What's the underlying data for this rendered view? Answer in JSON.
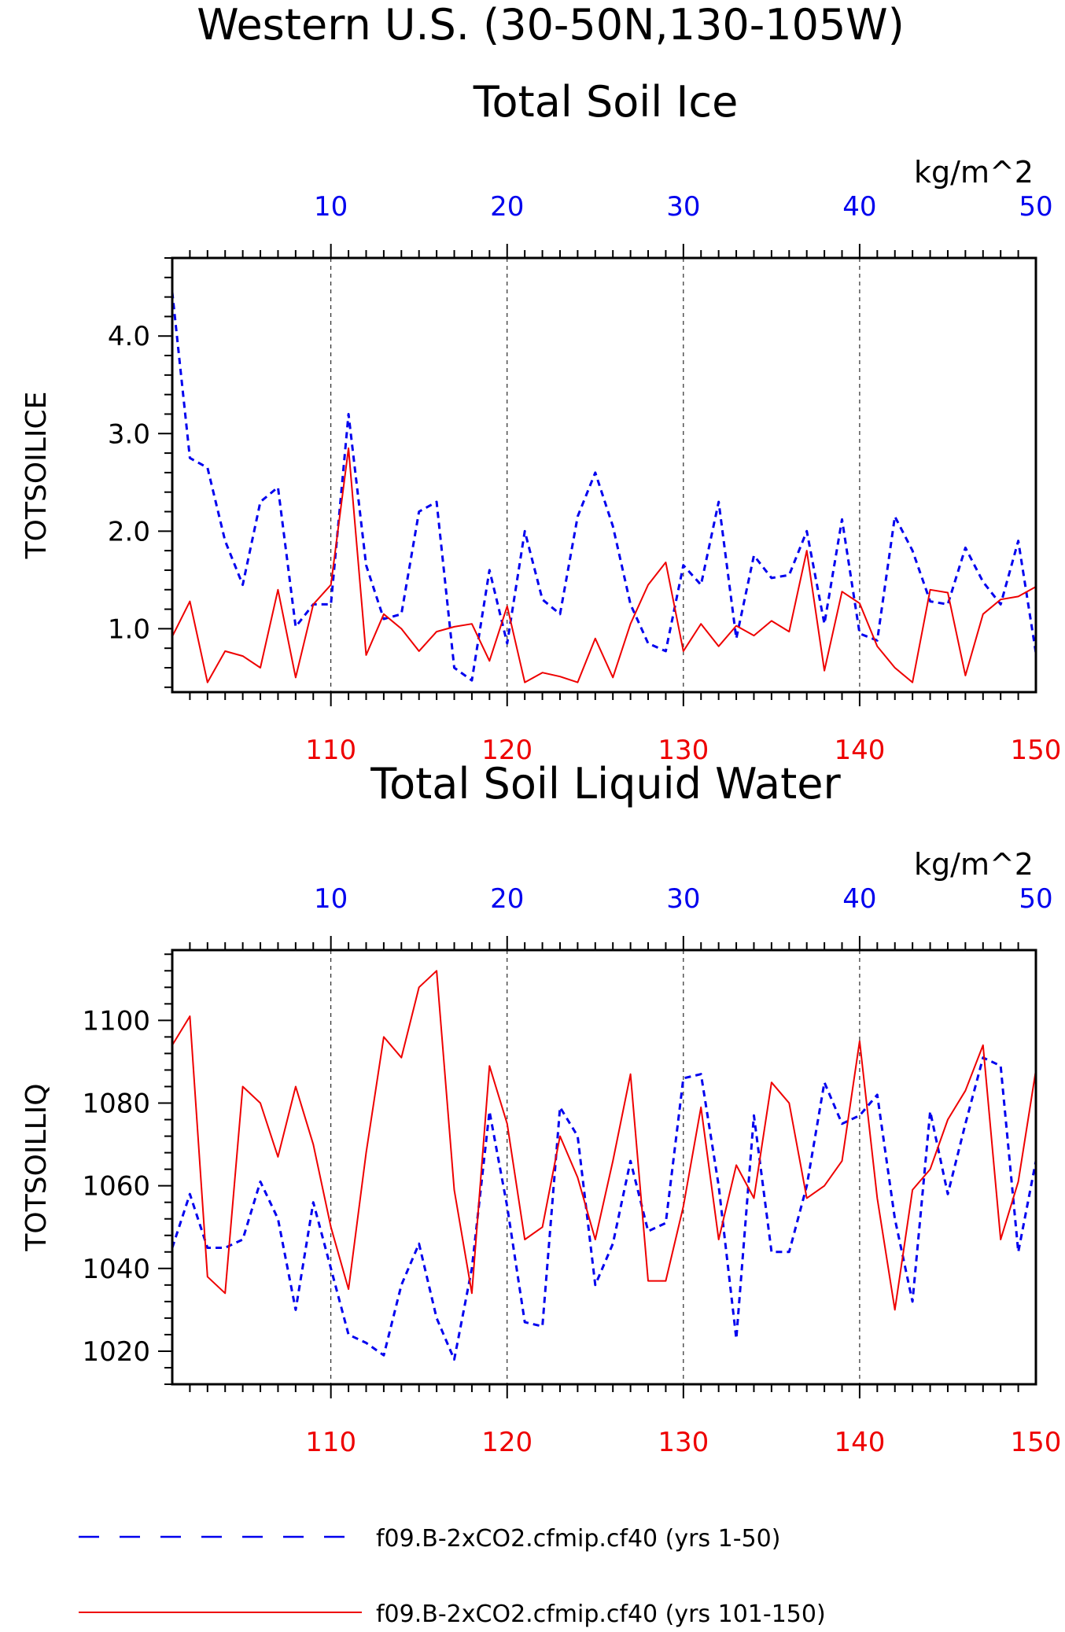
{
  "page_title": "Western U.S. (30-50N,130-105W)",
  "colors": {
    "series_top": "#0000ee",
    "series_bottom": "#ee0000",
    "axes": "#000000"
  },
  "legend": {
    "position": "bottom",
    "entries": [
      {
        "label": "f09.B-2xCO2.cfmip.cf40 (yrs 1-50)",
        "color": "#0000ee",
        "style": "dashed"
      },
      {
        "label": "f09.B-2xCO2.cfmip.cf40 (yrs 101-150)",
        "color": "#ee0000",
        "style": "solid"
      }
    ]
  },
  "chart_data": [
    {
      "type": "line",
      "title": "Total Soil Ice",
      "ylabel": "TOTSOILICE",
      "units": "kg/m^2",
      "ylim": [
        0.35,
        4.8
      ],
      "yticks": [
        "1.0",
        "2.0",
        "3.0",
        "4.0"
      ],
      "ytick_values": [
        1.0,
        2.0,
        3.0,
        4.0
      ],
      "top_axis": {
        "range": [
          1,
          50
        ],
        "ticks": [
          "10",
          "20",
          "30",
          "40",
          "50"
        ],
        "tick_values": [
          10,
          20,
          30,
          40,
          50
        ]
      },
      "bottom_axis": {
        "range": [
          101,
          150
        ],
        "ticks": [
          "110",
          "120",
          "130",
          "140",
          "150"
        ],
        "tick_values": [
          110,
          120,
          130,
          140,
          150
        ]
      },
      "grid": "vertical dashed at major ticks",
      "series": [
        {
          "axis": "top",
          "style": "dashed",
          "values": [
            4.45,
            2.75,
            2.65,
            1.9,
            1.45,
            2.3,
            2.45,
            1.02,
            1.25,
            1.25,
            3.2,
            1.65,
            1.1,
            1.15,
            2.2,
            2.3,
            0.6,
            0.47,
            1.6,
            0.85,
            2.0,
            1.3,
            1.15,
            2.15,
            2.6,
            2.05,
            1.25,
            0.85,
            0.77,
            1.65,
            1.45,
            2.3,
            0.9,
            1.75,
            1.52,
            1.55,
            2.0,
            1.05,
            2.12,
            0.95,
            0.88,
            2.15,
            1.8,
            1.28,
            1.25,
            1.83,
            1.48,
            1.25,
            1.9,
            0.75
          ]
        },
        {
          "axis": "bottom",
          "style": "solid",
          "values": [
            0.92,
            1.28,
            0.45,
            0.77,
            0.72,
            0.6,
            1.4,
            0.5,
            1.25,
            1.45,
            2.85,
            0.73,
            1.15,
            1.0,
            0.77,
            0.97,
            1.02,
            1.05,
            0.67,
            1.23,
            0.45,
            0.55,
            0.51,
            0.45,
            0.9,
            0.5,
            1.05,
            1.45,
            1.68,
            0.77,
            1.05,
            0.82,
            1.03,
            0.93,
            1.08,
            0.97,
            1.8,
            0.57,
            1.38,
            1.26,
            0.82,
            0.6,
            0.45,
            1.4,
            1.37,
            0.52,
            1.15,
            1.3,
            1.33,
            1.43
          ]
        }
      ]
    },
    {
      "type": "line",
      "title": "Total Soil Liquid Water",
      "ylabel": "TOTSOILLIQ",
      "units": "kg/m^2",
      "ylim": [
        1012,
        1117
      ],
      "yticks": [
        "1020",
        "1040",
        "1060",
        "1080",
        "1100"
      ],
      "ytick_values": [
        1020,
        1040,
        1060,
        1080,
        1100
      ],
      "top_axis": {
        "range": [
          1,
          50
        ],
        "ticks": [
          "10",
          "20",
          "30",
          "40",
          "50"
        ],
        "tick_values": [
          10,
          20,
          30,
          40,
          50
        ]
      },
      "bottom_axis": {
        "range": [
          101,
          150
        ],
        "ticks": [
          "110",
          "120",
          "130",
          "140",
          "150"
        ],
        "tick_values": [
          110,
          120,
          130,
          140,
          150
        ]
      },
      "grid": "vertical dashed at major ticks",
      "series": [
        {
          "axis": "top",
          "style": "dashed",
          "values": [
            1045,
            1058,
            1045,
            1045,
            1047,
            1061,
            1052,
            1030,
            1056,
            1040,
            1024,
            1022,
            1019,
            1036,
            1046,
            1028,
            1018,
            1040,
            1078,
            1055,
            1027,
            1026,
            1079,
            1072,
            1036,
            1046,
            1066,
            1049,
            1051,
            1086,
            1087,
            1060,
            1023,
            1077,
            1044,
            1044,
            1060,
            1085,
            1075,
            1077,
            1082,
            1052,
            1032,
            1078,
            1058,
            1075,
            1091,
            1089,
            1044,
            1066
          ]
        },
        {
          "axis": "bottom",
          "style": "solid",
          "values": [
            1094,
            1101,
            1038,
            1034,
            1084,
            1080,
            1067,
            1084,
            1070,
            1050,
            1035,
            1068,
            1096,
            1091,
            1108,
            1112,
            1059,
            1034,
            1089,
            1075,
            1047,
            1050,
            1072,
            1062,
            1047,
            1066,
            1087,
            1037,
            1037,
            1055,
            1079,
            1047,
            1065,
            1057,
            1085,
            1080,
            1057,
            1060,
            1066,
            1095,
            1057,
            1030,
            1059,
            1064,
            1076,
            1083,
            1094,
            1047,
            1061,
            1088
          ]
        }
      ]
    }
  ]
}
